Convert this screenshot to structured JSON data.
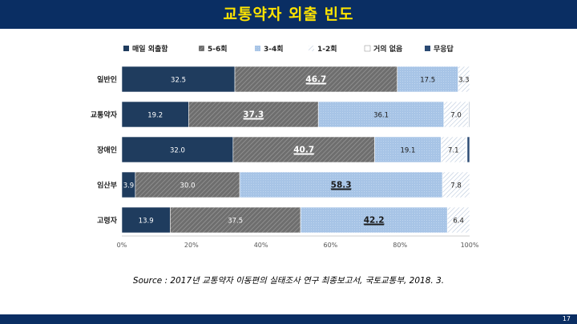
{
  "header": {
    "title": "교통약자 외출 빈도"
  },
  "source": "Source : 2017년 교통약자 이동편의 실태조사 연구 최종보고서, 국토교통부, 2018. 3.",
  "page_number": "17",
  "colors": {
    "header_bg": "#0a2e63",
    "title": "#ffe400",
    "daily": "#1f3c5e",
    "five_six": "#7a7a7a",
    "three_four": "#a9c6e8",
    "one_two": "#dfe7f1",
    "none": "#ffffff",
    "no_answer": "#2b4a73"
  },
  "chart_data": {
    "type": "bar",
    "orientation": "horizontal",
    "stacked": true,
    "categories": [
      "일반인",
      "교통약자",
      "장애인",
      "임산부",
      "고령자"
    ],
    "series": [
      {
        "name": "매일 외출함",
        "key": "daily",
        "values": [
          32.5,
          19.2,
          32.0,
          3.9,
          13.9
        ],
        "labels": [
          "32.5",
          "19.2",
          "32.0",
          "3.9",
          "13.9"
        ]
      },
      {
        "name": "5-6회",
        "key": "five_six",
        "values": [
          46.7,
          37.3,
          40.7,
          30.0,
          37.5
        ],
        "labels": [
          "46.7",
          "37.3",
          "40.7",
          "30.0",
          "37.5"
        ]
      },
      {
        "name": "3-4회",
        "key": "three_four",
        "values": [
          17.5,
          36.1,
          19.1,
          58.3,
          42.2
        ],
        "labels": [
          "17.5",
          "36.1",
          "19.1",
          "58.3",
          "42.2"
        ]
      },
      {
        "name": "1-2회",
        "key": "one_two",
        "values": [
          3.3,
          7.0,
          7.1,
          7.8,
          6.4
        ],
        "labels": [
          "3.3",
          "7.0",
          "7.1",
          "7.8",
          "6.4"
        ]
      },
      {
        "name": "거의 없음",
        "key": "none",
        "values": [
          0,
          0.2,
          0.4,
          0,
          0
        ],
        "labels": [
          "",
          "",
          "",
          "",
          ""
        ]
      },
      {
        "name": "무응답",
        "key": "no_answer",
        "values": [
          0,
          0.2,
          0.7,
          0,
          0
        ],
        "labels": [
          "",
          "",
          "",
          "",
          ""
        ]
      }
    ],
    "highlight_max": [
      1,
      1,
      1,
      2,
      2
    ],
    "xlim": [
      0,
      100
    ],
    "xticks": [
      "0%",
      "20%",
      "40%",
      "60%",
      "80%",
      "100%"
    ],
    "legend_position": "top",
    "grid": false
  }
}
